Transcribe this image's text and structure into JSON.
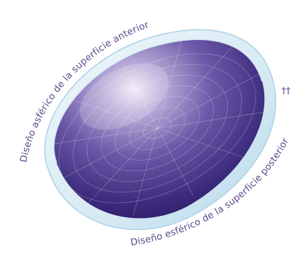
{
  "labels": {
    "anterior": "Diseño asférico de la superficie anterior",
    "posterior": "Diseño esférico de la superficie posterior",
    "mark": "††"
  },
  "colors": {
    "text": "#5b4a8b",
    "lens_dark": "#3b2a7a",
    "lens_mid": "#5a4699",
    "lens_light": "#a99ad0",
    "lens_highlight": "#e6e1f2",
    "rim": "#c7e3f0",
    "edge": "#7fb8d6"
  }
}
